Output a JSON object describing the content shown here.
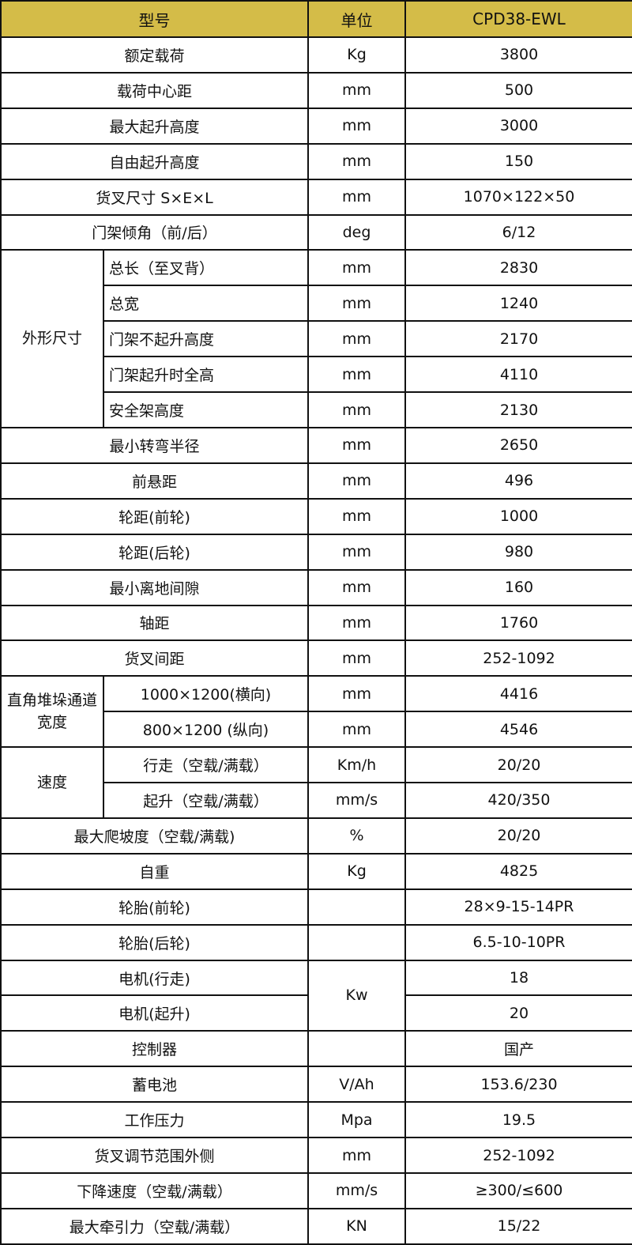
{
  "header": {
    "name": "型号",
    "unit": "单位",
    "model": "CPD38-EWL"
  },
  "header_color": "#d4bc48",
  "rows": [
    {
      "name": "额定载荷",
      "unit": "Kg",
      "value": "3800"
    },
    {
      "name": "载荷中心距",
      "unit": "mm",
      "value": "500"
    },
    {
      "name": "最大起升高度",
      "unit": "mm",
      "value": "3000"
    },
    {
      "name": "自由起升高度",
      "unit": "mm",
      "value": "150"
    },
    {
      "name": "货叉尺寸  S×E×L",
      "unit": "mm",
      "value": "1070×122×50"
    },
    {
      "name": "门架倾角（前/后）",
      "unit": "deg",
      "value": "6/12"
    },
    {
      "group": "外形尺寸",
      "align": "left",
      "items": [
        {
          "name": "总长（至叉背）",
          "unit": "mm",
          "value": "2830"
        },
        {
          "name": "总宽",
          "unit": "mm",
          "value": "1240"
        },
        {
          "name": "门架不起升高度",
          "unit": "mm",
          "value": "2170"
        },
        {
          "name": "门架起升时全高",
          "unit": "mm",
          "value": "4110"
        },
        {
          "name": "安全架高度",
          "unit": "mm",
          "value": "2130"
        }
      ]
    },
    {
      "name": "最小转弯半径",
      "unit": "mm",
      "value": "2650"
    },
    {
      "name": "前悬距",
      "unit": "mm",
      "value": "496"
    },
    {
      "name": "轮距(前轮)",
      "unit": "mm",
      "value": "1000"
    },
    {
      "name": "轮距(后轮)",
      "unit": "mm",
      "value": "980"
    },
    {
      "name": "最小离地间隙",
      "unit": "mm",
      "value": "160"
    },
    {
      "name": "轴距",
      "unit": "mm",
      "value": "1760"
    },
    {
      "name": "货叉间距",
      "unit": "mm",
      "value": "252-1092"
    },
    {
      "group": "直角堆垛通道宽度",
      "align": "center",
      "items": [
        {
          "name": "1000×1200(横向)",
          "unit": "mm",
          "value": "4416"
        },
        {
          "name": "800×1200 (纵向)",
          "unit": "mm",
          "value": "4546"
        }
      ]
    },
    {
      "group": "速度",
      "align": "center",
      "items": [
        {
          "name": "行走（空载/满载）",
          "unit": "Km/h",
          "value": "20/20"
        },
        {
          "name": "起升（空载/满载）",
          "unit": "mm/s",
          "value": "420/350"
        }
      ]
    },
    {
      "name": "最大爬坡度（空载/满载)",
      "unit": "%",
      "value": "20/20"
    },
    {
      "name": "自重",
      "unit": "Kg",
      "value": "4825"
    },
    {
      "name": "轮胎(前轮)",
      "unit": "",
      "value": "28×9-15-14PR"
    },
    {
      "name": "轮胎(后轮)",
      "unit": "",
      "value": "6.5-10-10PR"
    },
    {
      "name": "电机(行走)",
      "unit": "Kw",
      "unit_span": 2,
      "value": "18"
    },
    {
      "name": "电机(起升)",
      "unit_merged": true,
      "value": "20"
    },
    {
      "name": "控制器",
      "unit": "",
      "value": "国产"
    },
    {
      "name": "蓄电池",
      "unit": "V/Ah",
      "value": "153.6/230"
    },
    {
      "name": "工作压力",
      "unit": "Mpa",
      "value": "19.5"
    },
    {
      "name": "货叉调节范围外侧",
      "unit": "mm",
      "value": "252-1092"
    },
    {
      "name": "下降速度（空载/满载）",
      "unit": "mm/s",
      "value": "≥300/≤600"
    },
    {
      "name": "最大牵引力（空载/满载）",
      "unit": "KN",
      "value": "15/22"
    }
  ]
}
